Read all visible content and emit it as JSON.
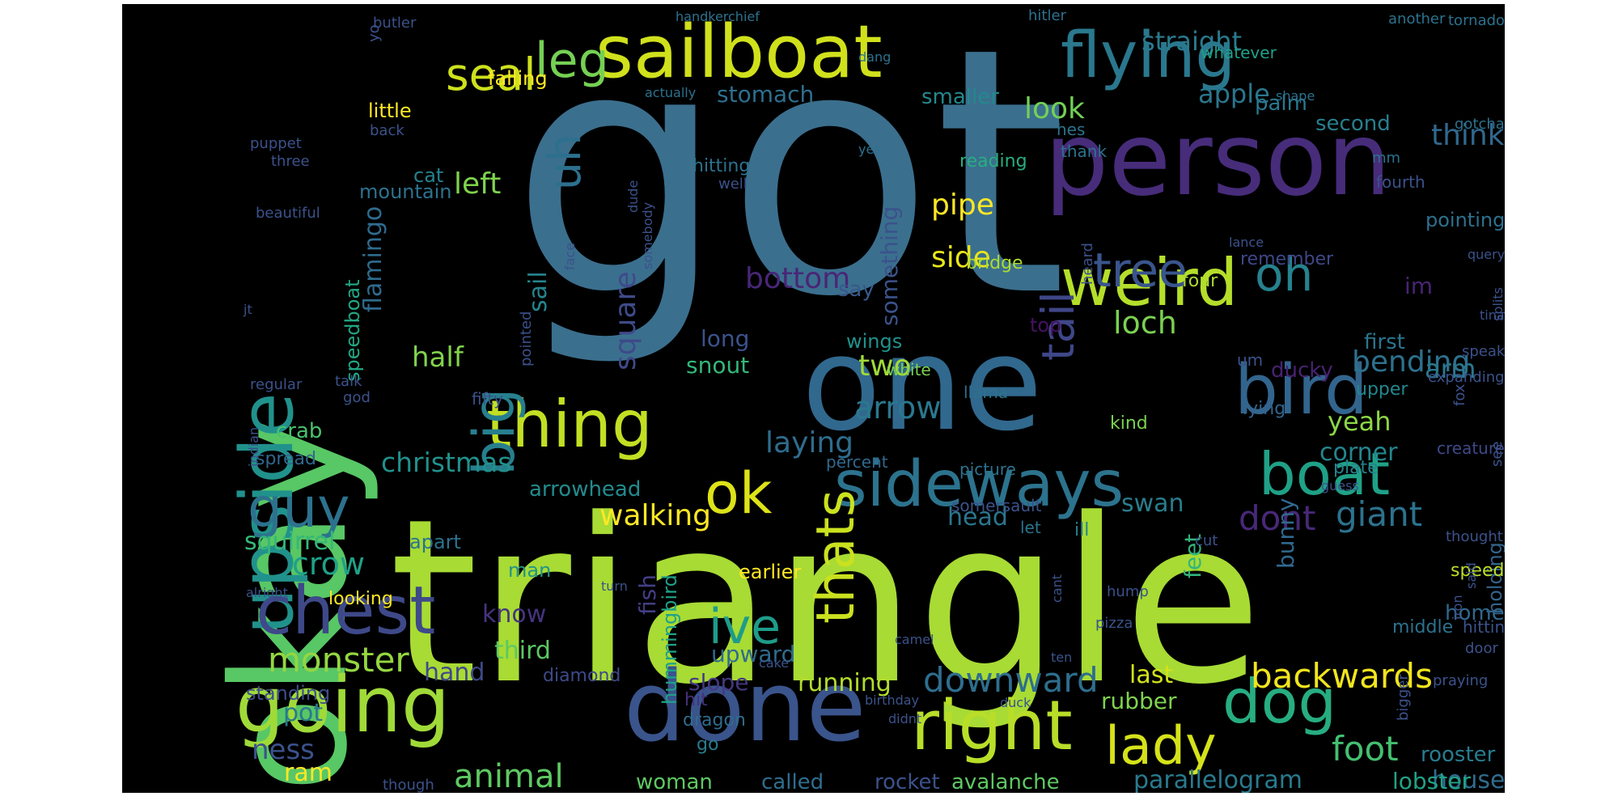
{
  "words": [
    {
      "text": "got",
      "color": "#3b6f8e"
    },
    {
      "text": "triangle",
      "color": "#a8db34"
    },
    {
      "text": "okay",
      "color": "#58c765"
    },
    {
      "text": "one",
      "color": "#31688e"
    },
    {
      "text": "person",
      "color": "#472c7a"
    },
    {
      "text": "done",
      "color": "#3a548c"
    },
    {
      "text": "sailboat",
      "color": "#d0e11c"
    },
    {
      "text": "flying",
      "color": "#2a788e"
    },
    {
      "text": "weird",
      "color": "#b5de2b"
    },
    {
      "text": "going",
      "color": "#a0da39"
    },
    {
      "text": "right",
      "color": "#b8de29"
    },
    {
      "text": "bird",
      "color": "#32658e"
    },
    {
      "text": "upside",
      "color": "#21918c"
    },
    {
      "text": "sideways",
      "color": "#2c738e"
    },
    {
      "text": "chest",
      "color": "#3e4989"
    },
    {
      "text": "thing",
      "color": "#c2df23"
    },
    {
      "text": "dog",
      "color": "#27ad81"
    },
    {
      "text": "boat",
      "color": "#1fa187"
    },
    {
      "text": "big",
      "color": "#277f8e"
    },
    {
      "text": "lady",
      "color": "#d5e21a"
    },
    {
      "text": "ok",
      "color": "#dde318"
    },
    {
      "text": "thats",
      "color": "#cae11f"
    },
    {
      "text": "guy",
      "color": "#2c728e"
    },
    {
      "text": "tree",
      "color": "#39558c"
    },
    {
      "text": "oh",
      "color": "#26828e"
    },
    {
      "text": "tail",
      "color": "#3f4788"
    },
    {
      "text": "leg",
      "color": "#75d054"
    },
    {
      "text": "seal",
      "color": "#cde11d"
    },
    {
      "text": "ive",
      "color": "#1e9c89"
    },
    {
      "text": "uh",
      "color": "#2d708e"
    },
    {
      "text": "backwards",
      "color": "#f1e51d"
    },
    {
      "text": "monster",
      "color": "#93d741"
    },
    {
      "text": "dont",
      "color": "#482878"
    },
    {
      "text": "giant",
      "color": "#2c728e"
    },
    {
      "text": "downward",
      "color": "#2e6e8e"
    },
    {
      "text": "foot",
      "color": "#44bf70"
    },
    {
      "text": "arrow",
      "color": "#2a788e"
    },
    {
      "text": "animal",
      "color": "#5ec962"
    },
    {
      "text": "crow",
      "color": "#1fa188"
    },
    {
      "text": "christmas",
      "color": "#21918c"
    },
    {
      "text": "walking",
      "color": "#fde725"
    },
    {
      "text": "bending",
      "color": "#2d718e"
    },
    {
      "text": "loch",
      "color": "#7ad151"
    },
    {
      "text": "laying",
      "color": "#2e6d8e"
    },
    {
      "text": "pipe",
      "color": "#fde725"
    },
    {
      "text": "side",
      "color": "#eae51a"
    },
    {
      "text": "bottom",
      "color": "#482677"
    },
    {
      "text": "square",
      "color": "#3e4a89"
    },
    {
      "text": "left",
      "color": "#7fd34e"
    },
    {
      "text": "half",
      "color": "#81d34d"
    },
    {
      "text": "look",
      "color": "#73d056"
    },
    {
      "text": "two",
      "color": "#a2da37"
    },
    {
      "text": "think",
      "color": "#31688e"
    },
    {
      "text": "apple",
      "color": "#2a778e"
    },
    {
      "text": "straight",
      "color": "#297a8e"
    },
    {
      "text": "arm",
      "color": "#2a788e"
    },
    {
      "text": "yeah",
      "color": "#8bd646"
    },
    {
      "text": "ness",
      "color": "#3b528b"
    },
    {
      "text": "house",
      "color": "#2f6c8e"
    },
    {
      "text": "parallelogram",
      "color": "#297a8e"
    },
    {
      "text": "ram",
      "color": "#fde725"
    },
    {
      "text": "head",
      "color": "#2b758e"
    },
    {
      "text": "squirrel",
      "color": "#35b779"
    },
    {
      "text": "swan",
      "color": "#287d8e"
    },
    {
      "text": "corner",
      "color": "#24868e"
    },
    {
      "text": "running",
      "color": "#b2dd2d"
    },
    {
      "text": "something",
      "color": "#3b528b"
    },
    {
      "text": "stomach",
      "color": "#2e6f8e"
    },
    {
      "text": "flamingo",
      "color": "#2f6b8e"
    },
    {
      "text": "sail",
      "color": "#25858e"
    },
    {
      "text": "hand",
      "color": "#3f4889"
    },
    {
      "text": "know",
      "color": "#46337e"
    },
    {
      "text": "third",
      "color": "#5cc863"
    },
    {
      "text": "pot",
      "color": "#2a788e"
    },
    {
      "text": "last",
      "color": "#d2e21b"
    },
    {
      "text": "rubber",
      "color": "#7fd34e"
    },
    {
      "text": "fish",
      "color": "#433e85"
    },
    {
      "text": "feet",
      "color": "#31b57b"
    },
    {
      "text": "bunny",
      "color": "#31688e"
    },
    {
      "text": "crab",
      "color": "#4ac16d"
    },
    {
      "text": "im",
      "color": "#482475"
    },
    {
      "text": "lobster",
      "color": "#20a386"
    },
    {
      "text": "rooster",
      "color": "#287c8e"
    },
    {
      "text": "rocket",
      "color": "#3b528b"
    },
    {
      "text": "called",
      "color": "#2e6e8e"
    },
    {
      "text": "avalanche",
      "color": "#5ec962"
    },
    {
      "text": "woman",
      "color": "#5ec962"
    },
    {
      "text": "hummingbird",
      "color": "#1fa188"
    },
    {
      "text": "slope",
      "color": "#453781"
    },
    {
      "text": "upward",
      "color": "#2f6b8e"
    },
    {
      "text": "speedboat",
      "color": "#22a884"
    },
    {
      "text": "arrowhead",
      "color": "#228b8d"
    },
    {
      "text": "snout",
      "color": "#35b779"
    },
    {
      "text": "long",
      "color": "#3b528b"
    },
    {
      "text": "say",
      "color": "#38588c"
    },
    {
      "text": "palm",
      "color": "#2a788e"
    },
    {
      "text": "second",
      "color": "#277f8e"
    },
    {
      "text": "smaller",
      "color": "#23898e"
    },
    {
      "text": "first",
      "color": "#2b758e"
    },
    {
      "text": "ducky",
      "color": "#482273"
    },
    {
      "text": "wings",
      "color": "#20928c"
    },
    {
      "text": "standing",
      "color": "#3d4e8a"
    },
    {
      "text": "home",
      "color": "#31688e"
    },
    {
      "text": "mountain",
      "color": "#2c728e"
    },
    {
      "text": "cat",
      "color": "#26818e"
    },
    {
      "text": "little",
      "color": "#fde725"
    },
    {
      "text": "falling",
      "color": "#fde725"
    },
    {
      "text": "spread",
      "color": "#31678e"
    },
    {
      "text": "earlier",
      "color": "#fde725"
    },
    {
      "text": "man",
      "color": "#1f958b"
    },
    {
      "text": "apart",
      "color": "#2c728e"
    },
    {
      "text": "middle",
      "color": "#2c728e"
    },
    {
      "text": "holding",
      "color": "#33638d"
    },
    {
      "text": "speed",
      "color": "#bddf26"
    },
    {
      "text": "pointing",
      "color": "#2d708e"
    },
    {
      "text": "look­ing",
      "color": "#fde725"
    },
    {
      "text": "diamond",
      "color": "#3e4989"
    },
    {
      "text": "hit",
      "color": "#46307e"
    },
    {
      "text": "dragon",
      "color": "#2f6c8e"
    },
    {
      "text": "go",
      "color": "#287d8e"
    },
    {
      "text": "lying",
      "color": "#32648e"
    },
    {
      "text": "upper",
      "color": "#24878e"
    },
    {
      "text": "kind",
      "color": "#7ad151"
    },
    {
      "text": "four",
      "color": "#addc30"
    },
    {
      "text": "remember",
      "color": "#3f4788"
    },
    {
      "text": "reading",
      "color": "#28ae80"
    },
    {
      "text": "bridge",
      "color": "#addc30"
    },
    {
      "text": "top",
      "color": "#471164"
    },
    {
      "text": "white",
      "color": "#7ad151"
    },
    {
      "text": "creature",
      "color": "#3e4989"
    },
    {
      "text": "plate",
      "color": "#26828e"
    },
    {
      "text": "ill",
      "color": "#26828e"
    },
    {
      "text": "let",
      "color": "#2b748e"
    },
    {
      "text": "picture",
      "color": "#2c728e"
    },
    {
      "text": "percent",
      "color": "#31688e"
    },
    {
      "text": "llama",
      "color": "#2c728e"
    },
    {
      "text": "um",
      "color": "#3b528b"
    },
    {
      "text": "fourth",
      "color": "#3b528b"
    },
    {
      "text": "hes",
      "color": "#2c728e"
    },
    {
      "text": "thank",
      "color": "#2c728e"
    },
    {
      "text": "whatever",
      "color": "#1fa188"
    },
    {
      "text": "another",
      "color": "#2c728e"
    },
    {
      "text": "tornado",
      "color": "#2c728e"
    },
    {
      "text": "hitler",
      "color": "#2c728e"
    },
    {
      "text": "handkerchief",
      "color": "#2c728e"
    },
    {
      "text": "yes",
      "color": "#2c728e"
    },
    {
      "text": "dang",
      "color": "#2c728e"
    },
    {
      "text": "actually",
      "color": "#2c728e"
    },
    {
      "text": "shape",
      "color": "#2c728e"
    },
    {
      "text": "gotcha",
      "color": "#2c728e"
    },
    {
      "text": "mm",
      "color": "#2c728e"
    },
    {
      "text": "hitting",
      "color": "#2c728e"
    },
    {
      "text": "well",
      "color": "#3b528b"
    },
    {
      "text": "dude",
      "color": "#3b528b"
    },
    {
      "text": "somebody",
      "color": "#3b528b"
    },
    {
      "text": "heard",
      "color": "#3b528b"
    },
    {
      "text": "lance",
      "color": "#3b528b"
    },
    {
      "text": "query",
      "color": "#3b528b"
    },
    {
      "text": "splits",
      "color": "#3b528b"
    },
    {
      "text": "tina",
      "color": "#3b528b"
    },
    {
      "text": "speak",
      "color": "#3b528b"
    },
    {
      "text": "expanding",
      "color": "#3b528b"
    },
    {
      "text": "fox",
      "color": "#3b528b"
    },
    {
      "text": "see",
      "color": "#3b528b"
    },
    {
      "text": "guess",
      "color": "#3b528b"
    },
    {
      "text": "thought",
      "color": "#3b528b"
    },
    {
      "text": "said",
      "color": "#3b528b"
    },
    {
      "text": "iron",
      "color": "#3b528b"
    },
    {
      "text": "hittin",
      "color": "#3b528b"
    },
    {
      "text": "door",
      "color": "#3b528b"
    },
    {
      "text": "bigger",
      "color": "#3b528b"
    },
    {
      "text": "praying",
      "color": "#3b528b"
    },
    {
      "text": "somersault",
      "color": "#3b528b"
    },
    {
      "text": "cut",
      "color": "#3b528b"
    },
    {
      "text": "hump",
      "color": "#3b528b"
    },
    {
      "text": "cant",
      "color": "#3b528b"
    },
    {
      "text": "pizza",
      "color": "#3b528b"
    },
    {
      "text": "ten",
      "color": "#3b528b"
    },
    {
      "text": "camel",
      "color": "#3b528b"
    },
    {
      "text": "cake",
      "color": "#3b528b"
    },
    {
      "text": "birthday",
      "color": "#3b528b"
    },
    {
      "text": "didnt",
      "color": "#3b528b"
    },
    {
      "text": "duck",
      "color": "#3b528b"
    },
    {
      "text": "turn",
      "color": "#3b528b"
    },
    {
      "text": "though",
      "color": "#3b528b"
    },
    {
      "text": "alright",
      "color": "#3b528b"
    },
    {
      "text": "face",
      "color": "#3b528b"
    },
    {
      "text": "pointed",
      "color": "#3b528b"
    },
    {
      "text": "fifty",
      "color": "#3b528b"
    },
    {
      "text": "god",
      "color": "#3b528b"
    },
    {
      "text": "talk",
      "color": "#3b528b"
    },
    {
      "text": "regular",
      "color": "#3b528b"
    },
    {
      "text": "indian",
      "color": "#3b528b"
    },
    {
      "text": "jt",
      "color": "#3b528b"
    },
    {
      "text": "beautiful",
      "color": "#3b528b"
    },
    {
      "text": "three",
      "color": "#3b528b"
    },
    {
      "text": "puppet",
      "color": "#3b528b"
    },
    {
      "text": "back",
      "color": "#3b528b"
    },
    {
      "text": "butler",
      "color": "#3b528b"
    },
    {
      "text": "yo",
      "color": "#3b528b"
    }
  ]
}
